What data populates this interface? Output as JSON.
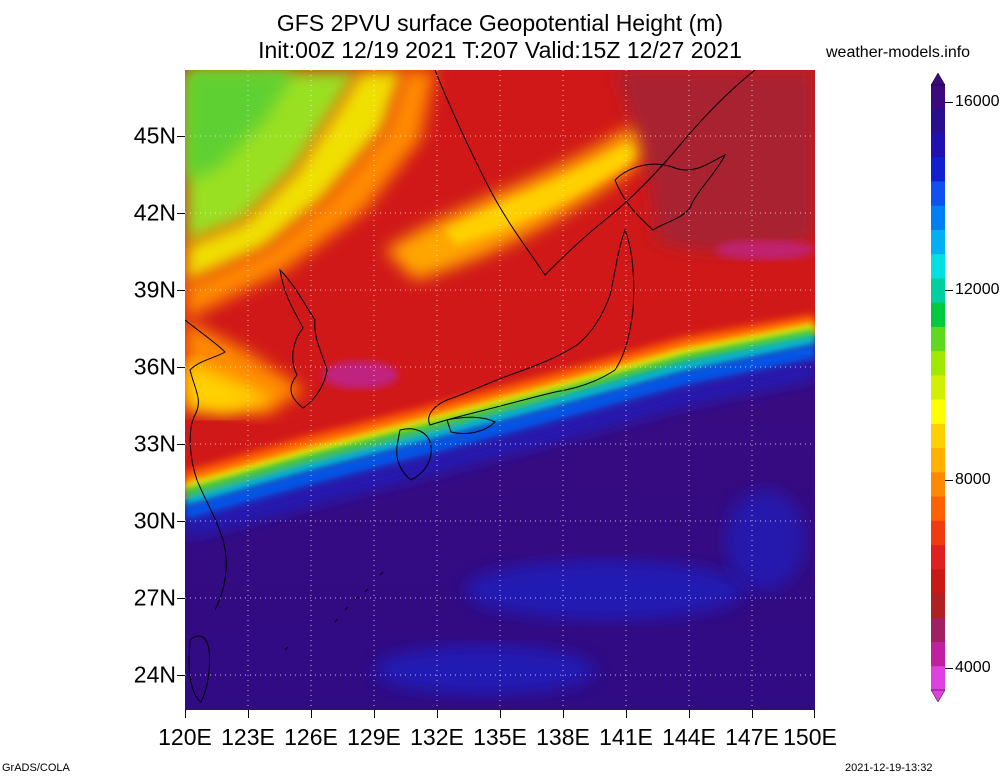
{
  "title_line1": "GFS 2PVU surface Geopotential Height (m)",
  "title_line2": "Init:00Z 12/19 2021 T:207 Valid:15Z 12/27 2021",
  "site": "weather-models.info",
  "lat_labels": [
    "45N",
    "42N",
    "39N",
    "36N",
    "33N",
    "30N",
    "27N",
    "24N"
  ],
  "lon_labels": [
    "120E",
    "123E",
    "126E",
    "129E",
    "132E",
    "135E",
    "138E",
    "141E",
    "144E",
    "147E",
    "150E"
  ],
  "colorbar": {
    "labels": [
      "16000",
      "12000",
      "8000",
      "4000"
    ],
    "colors": [
      "#e040e0",
      "#c020a0",
      "#a02060",
      "#b02020",
      "#c81818",
      "#e02020",
      "#f03a10",
      "#ff6000",
      "#ff8a00",
      "#ffb000",
      "#ffd000",
      "#ffff00",
      "#d0f000",
      "#a0e800",
      "#60d820",
      "#00c840",
      "#00d0a0",
      "#00e0e0",
      "#00b0f0",
      "#0080f0",
      "#1050f0",
      "#1020d0",
      "#2010b0",
      "#280f90",
      "#3c0a7c"
    ]
  },
  "footer_left": "GrADS/COLA",
  "footer_right": "2021-12-19-13:32"
}
